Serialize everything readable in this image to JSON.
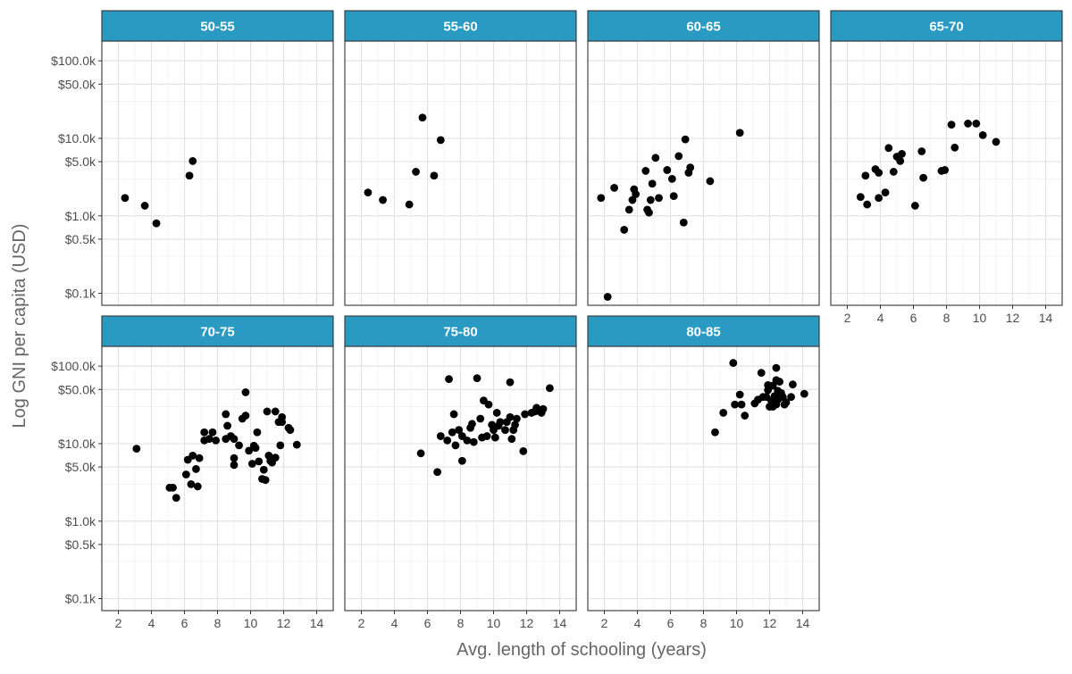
{
  "chart_data": {
    "type": "scatter",
    "facet_label_color": "#2b9ac3",
    "point_color": "#000000",
    "xlabel": "Avg. length of schooling (years)",
    "ylabel": "Log GNI per capita (USD)",
    "x_scale": "linear",
    "y_scale": "log10",
    "xlim": [
      1,
      15
    ],
    "ylim": [
      0.07,
      180
    ],
    "x_ticks": [
      2,
      4,
      6,
      8,
      10,
      12,
      14
    ],
    "y_ticks": [
      0.1,
      0.5,
      1,
      5,
      10,
      50,
      100
    ],
    "y_tick_labels": [
      "$0.1k",
      "$0.5k",
      "$1.0k",
      "$5.0k",
      "$10.0k",
      "$50.0k",
      "$100.0k"
    ],
    "y_unit": "thousand USD",
    "grid": true,
    "facets": [
      {
        "label": "50-55",
        "points": [
          [
            2.4,
            1.7
          ],
          [
            3.6,
            1.35
          ],
          [
            4.3,
            0.8
          ],
          [
            6.3,
            3.3
          ],
          [
            6.5,
            5.1
          ]
        ]
      },
      {
        "label": "55-60",
        "points": [
          [
            2.4,
            2.0
          ],
          [
            3.3,
            1.6
          ],
          [
            4.9,
            1.4
          ],
          [
            5.3,
            3.7
          ],
          [
            5.7,
            18.5
          ],
          [
            6.4,
            3.3
          ],
          [
            6.8,
            9.5
          ]
        ]
      },
      {
        "label": "60-65",
        "points": [
          [
            1.8,
            1.7
          ],
          [
            2.2,
            0.09
          ],
          [
            2.6,
            2.3
          ],
          [
            3.2,
            0.66
          ],
          [
            3.5,
            1.2
          ],
          [
            3.7,
            1.6
          ],
          [
            3.8,
            2.2
          ],
          [
            3.9,
            1.9
          ],
          [
            4.5,
            3.8
          ],
          [
            4.6,
            1.2
          ],
          [
            4.7,
            1.1
          ],
          [
            4.8,
            1.6
          ],
          [
            4.9,
            2.6
          ],
          [
            5.1,
            5.6
          ],
          [
            5.3,
            1.7
          ],
          [
            5.8,
            3.9
          ],
          [
            6.1,
            3.0
          ],
          [
            6.2,
            1.8
          ],
          [
            6.5,
            5.9
          ],
          [
            6.8,
            0.82
          ],
          [
            6.9,
            9.7
          ],
          [
            7.1,
            3.6
          ],
          [
            7.2,
            4.2
          ],
          [
            8.4,
            2.8
          ],
          [
            10.2,
            11.8
          ]
        ]
      },
      {
        "label": "65-70",
        "points": [
          [
            2.8,
            1.75
          ],
          [
            3.1,
            3.3
          ],
          [
            3.2,
            1.4
          ],
          [
            3.7,
            4.0
          ],
          [
            3.9,
            1.7
          ],
          [
            3.9,
            3.6
          ],
          [
            4.3,
            2.0
          ],
          [
            4.5,
            7.5
          ],
          [
            4.8,
            3.7
          ],
          [
            5.0,
            5.8
          ],
          [
            5.2,
            5.1
          ],
          [
            5.3,
            6.3
          ],
          [
            6.1,
            1.35
          ],
          [
            6.5,
            6.8
          ],
          [
            6.6,
            3.1
          ],
          [
            7.7,
            3.8
          ],
          [
            7.9,
            3.9
          ],
          [
            8.3,
            15.0
          ],
          [
            8.5,
            7.6
          ],
          [
            9.3,
            15.5
          ],
          [
            9.8,
            15.5
          ],
          [
            10.2,
            11.0
          ],
          [
            11.0,
            9.0
          ]
        ]
      },
      {
        "label": "70-75",
        "points": [
          [
            3.1,
            8.6
          ],
          [
            5.1,
            2.7
          ],
          [
            5.3,
            2.7
          ],
          [
            5.5,
            2.0
          ],
          [
            6.1,
            4.0
          ],
          [
            6.2,
            6.2
          ],
          [
            6.4,
            3.0
          ],
          [
            6.5,
            7.0
          ],
          [
            6.7,
            4.7
          ],
          [
            6.8,
            2.8
          ],
          [
            6.9,
            6.5
          ],
          [
            7.2,
            11.0
          ],
          [
            7.2,
            14.0
          ],
          [
            7.5,
            11.5
          ],
          [
            7.7,
            14.0
          ],
          [
            7.9,
            11.0
          ],
          [
            8.5,
            24.0
          ],
          [
            8.5,
            11.5
          ],
          [
            8.6,
            17.0
          ],
          [
            8.8,
            12.5
          ],
          [
            9.0,
            11.5
          ],
          [
            9.0,
            5.3
          ],
          [
            9.0,
            6.5
          ],
          [
            9.3,
            9.5
          ],
          [
            9.5,
            21.0
          ],
          [
            9.7,
            46.0
          ],
          [
            9.7,
            23.0
          ],
          [
            9.9,
            8.1
          ],
          [
            10.1,
            5.5
          ],
          [
            10.2,
            9.4
          ],
          [
            10.3,
            8.8
          ],
          [
            10.4,
            14.0
          ],
          [
            10.5,
            5.9
          ],
          [
            10.7,
            3.5
          ],
          [
            10.8,
            4.6
          ],
          [
            10.9,
            3.4
          ],
          [
            11.0,
            26.0
          ],
          [
            11.1,
            7.0
          ],
          [
            11.2,
            6.0
          ],
          [
            11.3,
            5.7
          ],
          [
            11.5,
            26.0
          ],
          [
            11.5,
            6.6
          ],
          [
            11.7,
            19.0
          ],
          [
            11.8,
            9.5
          ],
          [
            11.9,
            22.0
          ],
          [
            11.9,
            19.0
          ],
          [
            12.3,
            16.0
          ],
          [
            12.4,
            15.0
          ],
          [
            12.8,
            9.7
          ]
        ]
      },
      {
        "label": "75-80",
        "points": [
          [
            5.6,
            7.5
          ],
          [
            6.6,
            4.3
          ],
          [
            6.8,
            12.5
          ],
          [
            7.2,
            11.0
          ],
          [
            7.3,
            68.0
          ],
          [
            7.5,
            14.0
          ],
          [
            7.6,
            24.0
          ],
          [
            7.7,
            9.5
          ],
          [
            7.9,
            15.0
          ],
          [
            8.1,
            6.0
          ],
          [
            8.1,
            12.5
          ],
          [
            8.4,
            11.0
          ],
          [
            8.6,
            16.0
          ],
          [
            8.7,
            18.0
          ],
          [
            8.8,
            10.5
          ],
          [
            9.0,
            70.0
          ],
          [
            9.2,
            21.0
          ],
          [
            9.3,
            12.0
          ],
          [
            9.4,
            36.0
          ],
          [
            9.6,
            12.5
          ],
          [
            9.7,
            32.0
          ],
          [
            9.9,
            17.5
          ],
          [
            10.0,
            15.0
          ],
          [
            10.1,
            12.0
          ],
          [
            10.2,
            25.0
          ],
          [
            10.3,
            17.0
          ],
          [
            10.4,
            19.0
          ],
          [
            10.7,
            15.0
          ],
          [
            10.8,
            19.0
          ],
          [
            11.0,
            22.0
          ],
          [
            11.0,
            62.0
          ],
          [
            11.1,
            11.5
          ],
          [
            11.2,
            15.0
          ],
          [
            11.3,
            17.5
          ],
          [
            11.4,
            21.0
          ],
          [
            11.8,
            8.0
          ],
          [
            11.9,
            24.0
          ],
          [
            12.3,
            25.0
          ],
          [
            12.5,
            26.0
          ],
          [
            12.6,
            29.0
          ],
          [
            12.7,
            27.0
          ],
          [
            12.8,
            26.0
          ],
          [
            12.9,
            25.0
          ],
          [
            13.0,
            28.0
          ],
          [
            13.4,
            52.0
          ]
        ]
      },
      {
        "label": "80-85",
        "points": [
          [
            8.7,
            14.0
          ],
          [
            9.2,
            25.0
          ],
          [
            9.8,
            110.0
          ],
          [
            9.9,
            32.0
          ],
          [
            10.2,
            43.0
          ],
          [
            10.3,
            32.0
          ],
          [
            10.5,
            23.0
          ],
          [
            11.1,
            33.0
          ],
          [
            11.3,
            37.0
          ],
          [
            11.5,
            82.0
          ],
          [
            11.6,
            40.0
          ],
          [
            11.8,
            40.0
          ],
          [
            11.9,
            57.0
          ],
          [
            11.9,
            49.0
          ],
          [
            12.0,
            30.0
          ],
          [
            12.1,
            36.0
          ],
          [
            12.2,
            56.0
          ],
          [
            12.2,
            30.0
          ],
          [
            12.3,
            41.0
          ],
          [
            12.4,
            95.0
          ],
          [
            12.4,
            66.0
          ],
          [
            12.4,
            32.0
          ],
          [
            12.5,
            48.0
          ],
          [
            12.5,
            37.0
          ],
          [
            12.6,
            63.0
          ],
          [
            12.7,
            45.0
          ],
          [
            12.8,
            40.0
          ],
          [
            12.9,
            32.0
          ],
          [
            13.0,
            34.0
          ],
          [
            13.3,
            40.0
          ],
          [
            13.4,
            58.0
          ],
          [
            14.1,
            44.0
          ]
        ]
      }
    ]
  }
}
